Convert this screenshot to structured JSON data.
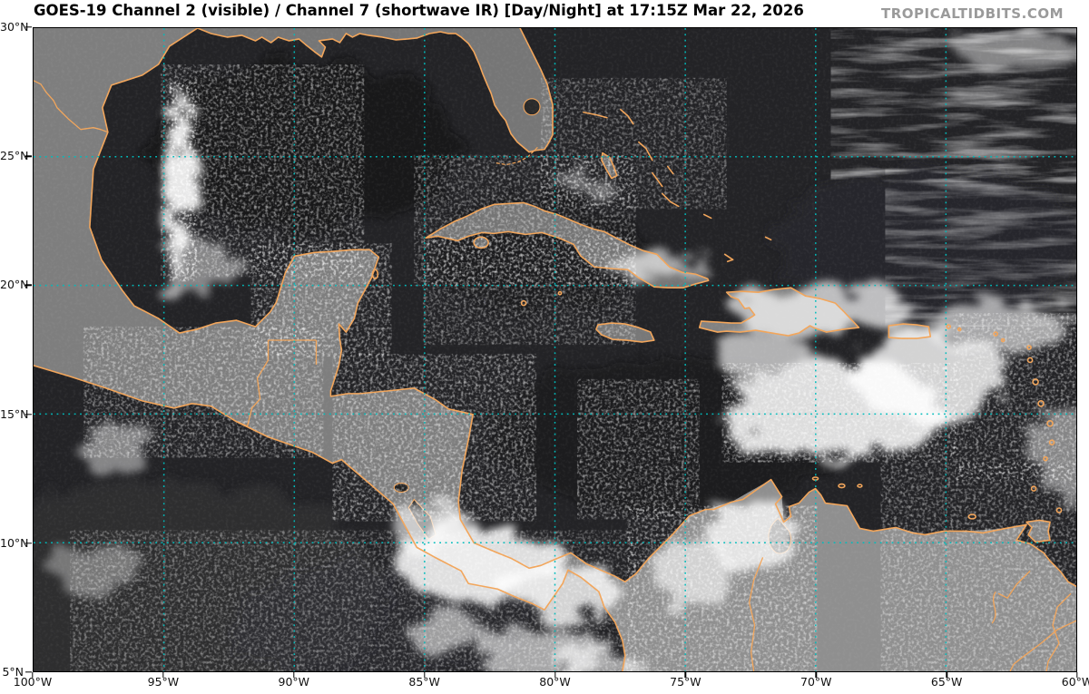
{
  "header": {
    "title": "GOES-19 Channel 2 (visible) / Channel 7 (shortwave IR) [Day/Night] at 17:15Z Mar 22, 2026",
    "watermark": "TROPICALTIDBITS.COM"
  },
  "map": {
    "satellite": "GOES-19",
    "product": "Channel 2 (visible) / Channel 7 (shortwave IR) [Day/Night]",
    "valid_time": "17:15Z Mar 22, 2026"
  },
  "axes": {
    "lat_labels": [
      "30°N",
      "25°N",
      "20°N",
      "15°N",
      "10°N",
      "5°N"
    ],
    "lon_labels": [
      "100°W",
      "95°W",
      "90°W",
      "85°W",
      "80°W",
      "75°W",
      "70°W",
      "65°W",
      "60°W"
    ]
  },
  "colors": {
    "coastline": "#f2a55a",
    "gridline": "#00bcbc",
    "ocean": "#232326",
    "land": "#7e7e7e",
    "title_text": "#000000",
    "watermark_text": "#9a9a9a"
  }
}
